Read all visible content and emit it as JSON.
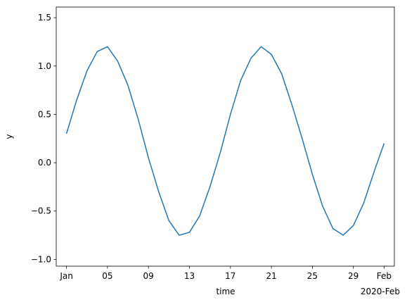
{
  "chart_data": {
    "type": "line",
    "x_label": "time",
    "y_label": "y",
    "x_offset_label": "2020-Feb",
    "x": [
      "2020-01-01",
      "2020-01-02",
      "2020-01-03",
      "2020-01-04",
      "2020-01-05",
      "2020-01-06",
      "2020-01-07",
      "2020-01-08",
      "2020-01-09",
      "2020-01-10",
      "2020-01-11",
      "2020-01-12",
      "2020-01-13",
      "2020-01-14",
      "2020-01-15",
      "2020-01-16",
      "2020-01-17",
      "2020-01-18",
      "2020-01-19",
      "2020-01-20",
      "2020-01-21",
      "2020-01-22",
      "2020-01-23",
      "2020-01-24",
      "2020-01-25",
      "2020-01-26",
      "2020-01-27",
      "2020-01-28",
      "2020-01-29",
      "2020-01-30",
      "2020-01-31",
      "2020-02-01"
    ],
    "series": [
      {
        "name": "y",
        "color": "#1f77b4",
        "values": [
          0.3,
          0.65,
          0.95,
          1.15,
          1.2,
          1.05,
          0.8,
          0.45,
          0.05,
          -0.3,
          -0.6,
          -0.75,
          -0.72,
          -0.55,
          -0.25,
          0.1,
          0.5,
          0.85,
          1.08,
          1.2,
          1.12,
          0.92,
          0.6,
          0.25,
          -0.12,
          -0.45,
          -0.68,
          -0.75,
          -0.65,
          -0.42,
          -0.1,
          0.2
        ]
      }
    ],
    "xlim": [
      "2019-12-31",
      "2020-02-02"
    ],
    "xticks": [
      {
        "value": "2020-01-01",
        "label": "Jan"
      },
      {
        "value": "2020-01-05",
        "label": "05"
      },
      {
        "value": "2020-01-09",
        "label": "09"
      },
      {
        "value": "2020-01-13",
        "label": "13"
      },
      {
        "value": "2020-01-17",
        "label": "17"
      },
      {
        "value": "2020-01-21",
        "label": "21"
      },
      {
        "value": "2020-01-25",
        "label": "25"
      },
      {
        "value": "2020-01-29",
        "label": "29"
      },
      {
        "value": "2020-02-01",
        "label": "Feb"
      }
    ],
    "ylim": [
      -1.07,
      1.61
    ],
    "yticks": [
      {
        "value": -1.0,
        "label": "−1.0"
      },
      {
        "value": -0.5,
        "label": "−0.5"
      },
      {
        "value": 0.0,
        "label": "0.0"
      },
      {
        "value": 0.5,
        "label": "0.5"
      },
      {
        "value": 1.0,
        "label": "1.0"
      },
      {
        "value": 1.5,
        "label": "1.5"
      }
    ],
    "grid": false
  }
}
